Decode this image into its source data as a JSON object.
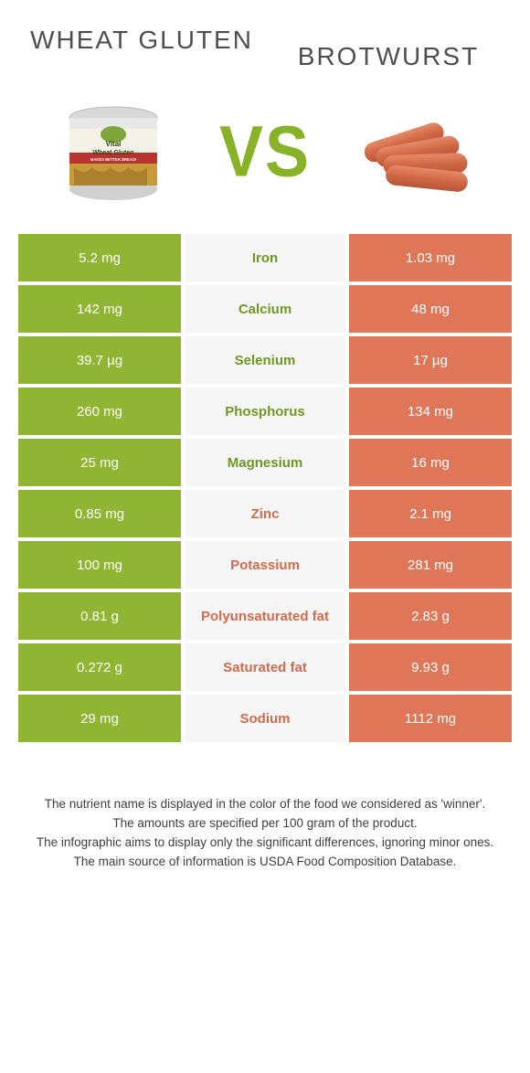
{
  "colors": {
    "left": "#8fb532",
    "right": "#e07658",
    "left_text": "#6f9a1f",
    "right_text": "#d46a4d",
    "mid_bg": "#f6f6f6",
    "vs": "#88b227"
  },
  "products": {
    "left": {
      "title": "Wheat gluten"
    },
    "right": {
      "title": "Brotwurst"
    }
  },
  "vs_label": "VS",
  "rows": [
    {
      "label": "Iron",
      "left": "5.2 mg",
      "right": "1.03 mg",
      "winner": "left"
    },
    {
      "label": "Calcium",
      "left": "142 mg",
      "right": "48 mg",
      "winner": "left"
    },
    {
      "label": "Selenium",
      "left": "39.7 µg",
      "right": "17 µg",
      "winner": "left"
    },
    {
      "label": "Phosphorus",
      "left": "260 mg",
      "right": "134 mg",
      "winner": "left"
    },
    {
      "label": "Magnesium",
      "left": "25 mg",
      "right": "16 mg",
      "winner": "left"
    },
    {
      "label": "Zinc",
      "left": "0.85 mg",
      "right": "2.1 mg",
      "winner": "right"
    },
    {
      "label": "Potassium",
      "left": "100 mg",
      "right": "281 mg",
      "winner": "right"
    },
    {
      "label": "Polyunsaturated fat",
      "left": "0.81 g",
      "right": "2.83 g",
      "winner": "right"
    },
    {
      "label": "Saturated fat",
      "left": "0.272 g",
      "right": "9.93 g",
      "winner": "right"
    },
    {
      "label": "Sodium",
      "left": "29 mg",
      "right": "1112 mg",
      "winner": "right"
    }
  ],
  "footer": {
    "l1": "The nutrient name is displayed in the color of the food we considered as 'winner'.",
    "l2": "The amounts are specified per 100 gram of the product.",
    "l3": "The infographic aims to display only the significant differences, ignoring minor ones.",
    "l4": "The main source of information is USDA Food Composition Database."
  }
}
